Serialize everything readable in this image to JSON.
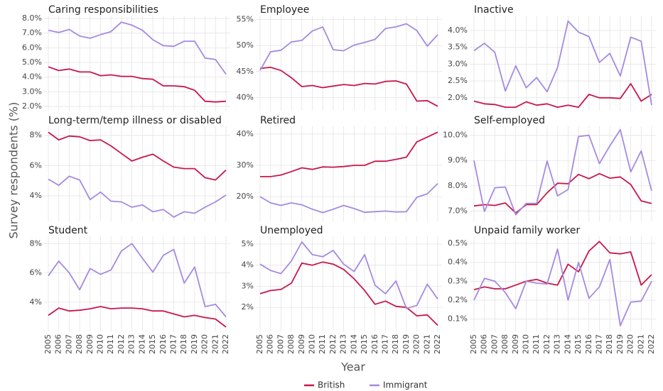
{
  "chart_data": {
    "type": "line",
    "xlabel": "Year",
    "ylabel": "Survey respondents (%)",
    "x": [
      2005,
      2006,
      2007,
      2008,
      2009,
      2010,
      2011,
      2012,
      2013,
      2014,
      2015,
      2016,
      2017,
      2018,
      2019,
      2020,
      2021,
      2022
    ],
    "xlim": [
      2005,
      2022
    ],
    "grid": true,
    "legend": [
      {
        "name": "British",
        "color": "#c8174a"
      },
      {
        "name": "Immigrant",
        "color": "#a48ae0"
      }
    ],
    "panels": [
      {
        "title": "Caring responsibilities",
        "ylim": [
          1.9,
          8.1
        ],
        "yticks": [
          {
            "value": 2,
            "label": "2.0%"
          },
          {
            "value": 3,
            "label": "3.0%"
          },
          {
            "value": 4,
            "label": "4.0%"
          },
          {
            "value": 5,
            "label": "5.0%"
          },
          {
            "value": 6,
            "label": "6.0%"
          },
          {
            "value": 7,
            "label": "7.0%"
          },
          {
            "value": 8,
            "label": "8.0%"
          }
        ],
        "series": [
          {
            "values": [
              4.7,
              4.45,
              4.55,
              4.35,
              4.35,
              4.1,
              4.15,
              4.05,
              4.05,
              3.9,
              3.85,
              3.4,
              3.4,
              3.35,
              3.1,
              2.35,
              2.3,
              2.35
            ]
          },
          {
            "values": [
              7.2,
              7.05,
              7.25,
              6.8,
              6.65,
              6.9,
              7.1,
              7.75,
              7.55,
              7.2,
              6.55,
              6.15,
              6.1,
              6.45,
              6.45,
              5.3,
              5.2,
              4.2
            ]
          }
        ]
      },
      {
        "title": "Employee",
        "ylim": [
          38,
          55.5
        ],
        "yticks": [
          {
            "value": 40,
            "label": "40%"
          },
          {
            "value": 45,
            "label": "45%"
          },
          {
            "value": 50,
            "label": "50%"
          },
          {
            "value": 55,
            "label": "55%"
          }
        ],
        "series": [
          {
            "values": [
              45.6,
              45.8,
              45.2,
              43.8,
              42.1,
              42.3,
              41.9,
              42.2,
              42.5,
              42.3,
              42.7,
              42.6,
              43.1,
              43.2,
              42.6,
              39.3,
              39.4,
              38.3
            ]
          },
          {
            "values": [
              45.2,
              48.8,
              49.1,
              50.7,
              51.0,
              52.8,
              53.6,
              49.2,
              49.0,
              50.1,
              50.6,
              51.2,
              53.3,
              53.6,
              54.2,
              52.9,
              49.9,
              52.1
            ]
          }
        ]
      },
      {
        "title": "Inactive",
        "ylim": [
          1.7,
          4.4
        ],
        "yticks": [
          {
            "value": 2,
            "label": "2.0%"
          },
          {
            "value": 2.5,
            "label": "2.5%"
          },
          {
            "value": 3,
            "label": "3.0%"
          },
          {
            "value": 3.5,
            "label": "3.5%"
          },
          {
            "value": 4,
            "label": "4.0%"
          }
        ],
        "series": [
          {
            "values": [
              1.9,
              1.82,
              1.8,
              1.72,
              1.72,
              1.88,
              1.78,
              1.82,
              1.72,
              1.78,
              1.72,
              2.1,
              2.0,
              2.0,
              1.98,
              2.42,
              1.9,
              2.1
            ]
          },
          {
            "values": [
              3.4,
              3.62,
              3.35,
              2.2,
              2.95,
              2.3,
              2.6,
              2.18,
              2.9,
              4.28,
              3.95,
              3.82,
              3.05,
              3.32,
              2.65,
              3.8,
              3.68,
              1.78
            ]
          }
        ]
      },
      {
        "title": "Long-term/temp illness or disabled",
        "ylim": [
          2.5,
          8.5
        ],
        "yticks": [
          {
            "value": 4,
            "label": "4%"
          },
          {
            "value": 6,
            "label": "6%"
          },
          {
            "value": 8,
            "label": "8%"
          }
        ],
        "series": [
          {
            "values": [
              8.2,
              7.7,
              7.95,
              7.9,
              7.65,
              7.7,
              7.3,
              6.8,
              6.3,
              6.55,
              6.75,
              6.3,
              5.9,
              5.8,
              5.8,
              5.2,
              5.05,
              5.7
            ]
          },
          {
            "values": [
              5.1,
              4.7,
              5.3,
              5.05,
              3.75,
              4.25,
              3.65,
              3.6,
              3.25,
              3.4,
              2.95,
              3.1,
              2.6,
              2.95,
              2.85,
              3.25,
              3.6,
              4.05
            ]
          }
        ]
      },
      {
        "title": "Retired",
        "ylim": [
          13,
          42
        ],
        "yticks": [
          {
            "value": 20,
            "label": "20%"
          },
          {
            "value": 30,
            "label": "30%"
          },
          {
            "value": 40,
            "label": "40%"
          }
        ],
        "series": [
          {
            "values": [
              26.4,
              26.4,
              26.9,
              28.0,
              29.2,
              28.7,
              29.5,
              29.4,
              29.6,
              30.0,
              30.0,
              31.3,
              31.3,
              31.9,
              32.6,
              37.5,
              39.0,
              40.6
            ]
          },
          {
            "values": [
              20.0,
              18.0,
              17.2,
              18.0,
              17.4,
              16.0,
              14.9,
              16.0,
              17.2,
              16.2,
              15.0,
              15.2,
              15.4,
              15.1,
              15.2,
              19.8,
              20.9,
              24.2
            ]
          }
        ]
      },
      {
        "title": "Self-employed",
        "ylim": [
          6.7,
          10.3
        ],
        "yticks": [
          {
            "value": 7,
            "label": "7.0%"
          },
          {
            "value": 8,
            "label": "8.0%"
          },
          {
            "value": 9,
            "label": "9.0%"
          },
          {
            "value": 10,
            "label": "10.0%"
          }
        ],
        "series": [
          {
            "values": [
              7.2,
              7.25,
              7.22,
              7.32,
              6.92,
              7.25,
              7.25,
              7.72,
              8.1,
              8.08,
              8.45,
              8.28,
              8.48,
              8.3,
              8.35,
              8.05,
              7.4,
              7.3
            ]
          },
          {
            "values": [
              9.0,
              6.98,
              7.92,
              7.95,
              6.85,
              7.3,
              7.3,
              8.98,
              7.6,
              7.85,
              9.95,
              10.0,
              8.88,
              9.58,
              10.22,
              8.55,
              9.38,
              7.8
            ]
          }
        ]
      },
      {
        "title": "Student",
        "ylim": [
          2.2,
          8.4
        ],
        "yticks": [
          {
            "value": 4,
            "label": "4%"
          },
          {
            "value": 6,
            "label": "6%"
          },
          {
            "value": 8,
            "label": "8%"
          }
        ],
        "series": [
          {
            "values": [
              3.1,
              3.6,
              3.4,
              3.45,
              3.55,
              3.7,
              3.55,
              3.6,
              3.6,
              3.55,
              3.4,
              3.4,
              3.2,
              3.0,
              3.1,
              2.95,
              2.85,
              2.3
            ]
          },
          {
            "values": [
              5.8,
              6.8,
              6.0,
              4.85,
              6.3,
              5.9,
              6.2,
              7.5,
              8.0,
              7.0,
              6.05,
              7.2,
              7.6,
              5.3,
              6.4,
              3.7,
              3.85,
              3.0
            ]
          }
        ]
      },
      {
        "title": "Unemployed",
        "ylim": [
          1.0,
          5.3
        ],
        "yticks": [
          {
            "value": 2,
            "label": "2%"
          },
          {
            "value": 3,
            "label": "3%"
          },
          {
            "value": 4,
            "label": "4%"
          },
          {
            "value": 5,
            "label": "5%"
          }
        ],
        "series": [
          {
            "values": [
              2.65,
              2.8,
              2.85,
              3.15,
              4.1,
              4.0,
              4.15,
              4.05,
              3.8,
              3.35,
              2.8,
              2.15,
              2.3,
              2.05,
              2.0,
              1.6,
              1.65,
              1.15
            ]
          },
          {
            "values": [
              4.05,
              3.75,
              3.6,
              4.2,
              5.1,
              4.5,
              4.4,
              4.7,
              4.05,
              3.7,
              4.5,
              3.05,
              2.65,
              3.25,
              1.95,
              2.1,
              3.1,
              2.4
            ]
          }
        ]
      },
      {
        "title": "Unpaid family worker",
        "ylim": [
          0.05,
          0.53
        ],
        "yticks": [
          {
            "value": 0.1,
            "label": "0.1%"
          },
          {
            "value": 0.2,
            "label": "0.2%"
          },
          {
            "value": 0.3,
            "label": "0.3%"
          },
          {
            "value": 0.4,
            "label": "0.4%"
          },
          {
            "value": 0.5,
            "label": "0.5%"
          }
        ],
        "series": [
          {
            "values": [
              0.255,
              0.27,
              0.26,
              0.26,
              0.28,
              0.3,
              0.31,
              0.29,
              0.28,
              0.39,
              0.35,
              0.46,
              0.51,
              0.45,
              0.445,
              0.455,
              0.28,
              0.335
            ]
          },
          {
            "values": [
              0.2,
              0.315,
              0.3,
              0.24,
              0.155,
              0.3,
              0.29,
              0.285,
              0.47,
              0.2,
              0.4,
              0.21,
              0.27,
              0.415,
              0.065,
              0.19,
              0.195,
              0.3
            ]
          }
        ]
      }
    ]
  }
}
